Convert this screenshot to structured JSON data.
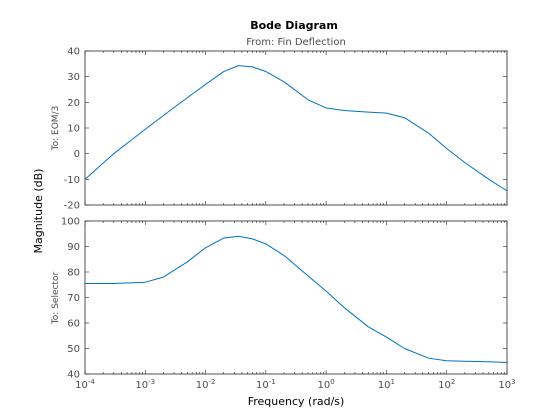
{
  "chart_data": {
    "type": "line",
    "title": "Bode Diagram",
    "subtitle": "From: Fin Deflection",
    "xlabel": "Frequency  (rad/s)",
    "ylabel": "Magnitude (dB)",
    "x_scale": "log",
    "xlim": [
      0.0001,
      1000
    ],
    "x_ticks": [
      0.0001,
      0.001,
      0.01,
      0.1,
      1,
      10,
      100,
      1000
    ],
    "x_tick_labels": [
      {
        "base": "10",
        "exp": "-4"
      },
      {
        "base": "10",
        "exp": "-3"
      },
      {
        "base": "10",
        "exp": "-2"
      },
      {
        "base": "10",
        "exp": "-1"
      },
      {
        "base": "10",
        "exp": "0"
      },
      {
        "base": "10",
        "exp": "1"
      },
      {
        "base": "10",
        "exp": "2"
      },
      {
        "base": "10",
        "exp": "3"
      }
    ],
    "grid": false,
    "line_color": "#0072bd",
    "subplots": [
      {
        "ylabel": "To: EOM/3",
        "ylim": [
          -20,
          40
        ],
        "y_ticks": [
          -20,
          -10,
          0,
          10,
          20,
          30,
          40
        ],
        "x": [
          0.0001,
          0.0003,
          0.001,
          0.003,
          0.01,
          0.02,
          0.035,
          0.06,
          0.1,
          0.2,
          0.5,
          1,
          2,
          5,
          10,
          20,
          50,
          100,
          200,
          500,
          1000
        ],
        "y": [
          -10,
          0,
          9.5,
          18,
          27,
          32,
          34.3,
          33.8,
          32,
          28,
          21,
          17.8,
          16.8,
          16.2,
          15.8,
          14,
          8,
          2,
          -3.5,
          -10,
          -14.5
        ]
      },
      {
        "ylabel": "To: Selector",
        "ylim": [
          40,
          100
        ],
        "y_ticks": [
          40,
          50,
          60,
          70,
          80,
          90,
          100
        ],
        "x": [
          0.0001,
          0.0003,
          0.001,
          0.002,
          0.005,
          0.01,
          0.02,
          0.035,
          0.06,
          0.1,
          0.2,
          0.5,
          1,
          2,
          5,
          10,
          20,
          50,
          100,
          200,
          500,
          1000
        ],
        "y": [
          75.5,
          75.5,
          76,
          78,
          84,
          89.5,
          93.3,
          94,
          93,
          91,
          86.5,
          78.5,
          72.5,
          66,
          58.5,
          54.5,
          50,
          46.2,
          45.2,
          45,
          44.8,
          44.5
        ]
      }
    ]
  }
}
